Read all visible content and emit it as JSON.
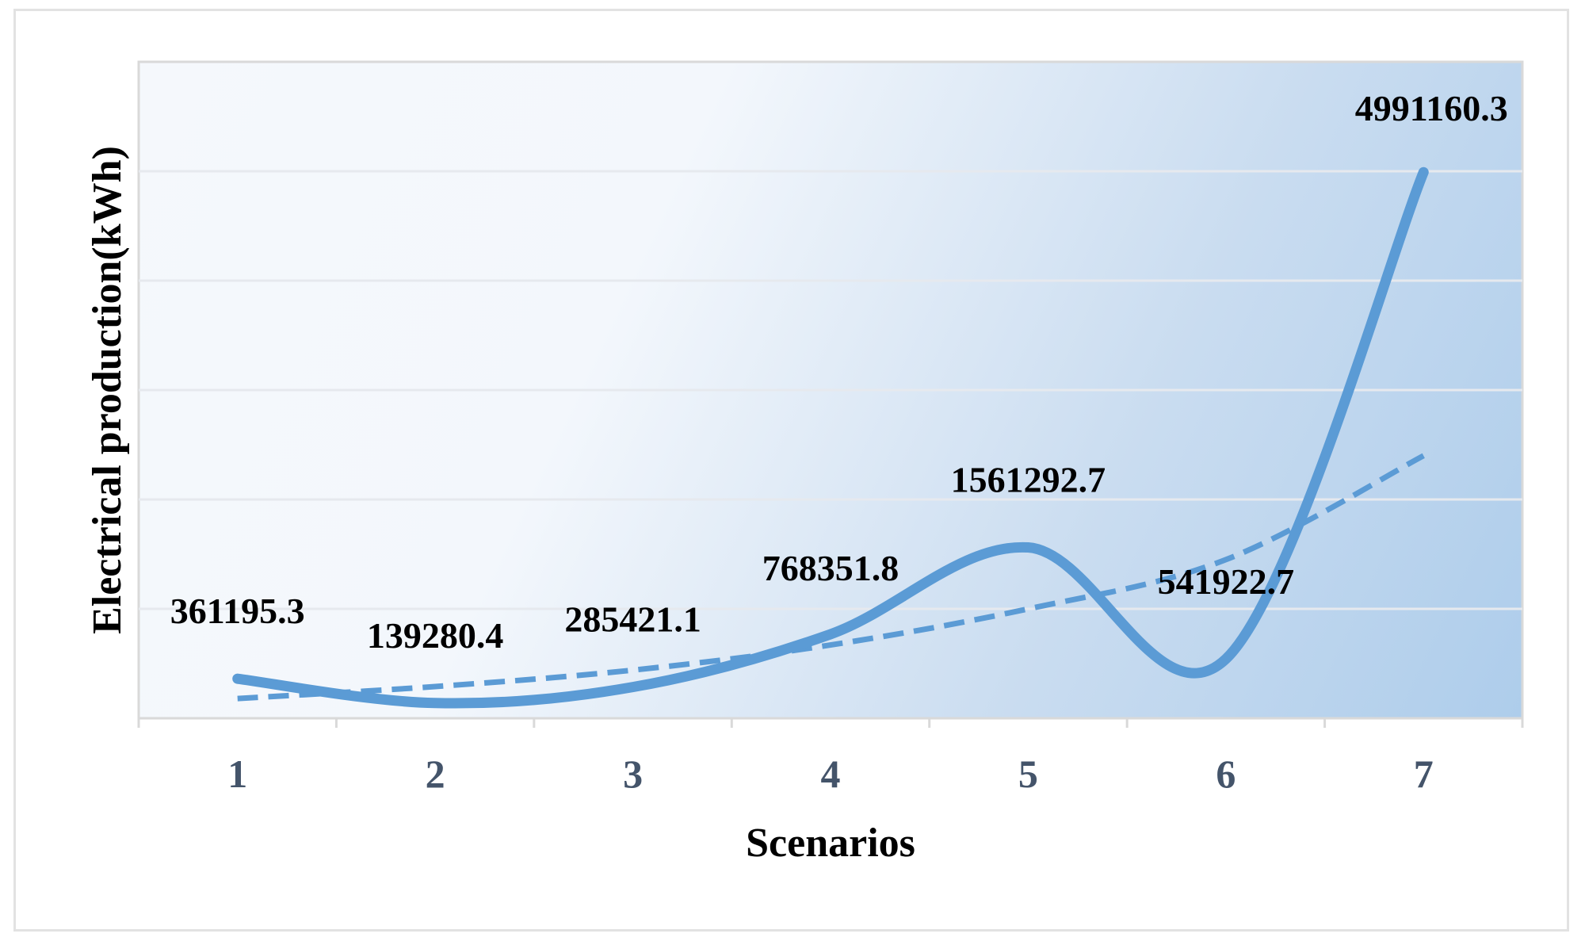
{
  "chart_data": {
    "type": "line",
    "xlabel": "Scenarios",
    "ylabel": "Electrical production(kWh)",
    "categories": [
      "1",
      "2",
      "3",
      "4",
      "5",
      "6",
      "7"
    ],
    "series": [
      {
        "values": [
          361195.3,
          139280.4,
          285421.1,
          768351.8,
          1561292.7,
          541922.7,
          4991160.3
        ],
        "style": "smooth-solid",
        "color": "#5b9bd5"
      },
      {
        "values": [
          180000,
          290000,
          440000,
          670000,
          1000000,
          1450000,
          2400000
        ],
        "style": "trendline-dashed",
        "color": "#5b9bd5"
      }
    ],
    "data_labels": [
      "361195.3",
      "139280.4",
      "285421.1",
      "768351.8",
      "1561292.7",
      "541922.7",
      "4991160.3"
    ],
    "ylim": [
      0,
      6000000
    ],
    "y_gridlines": [
      1000000,
      2000000,
      3000000,
      4000000,
      5000000
    ],
    "y_tick_labels_shown": false,
    "grid": true,
    "legend": "none",
    "colors": {
      "line": "#5b9bd5",
      "plot_light": "#f5f8fc",
      "plot_dark": "#a8c9ea",
      "axis_text": "#44546a"
    }
  }
}
